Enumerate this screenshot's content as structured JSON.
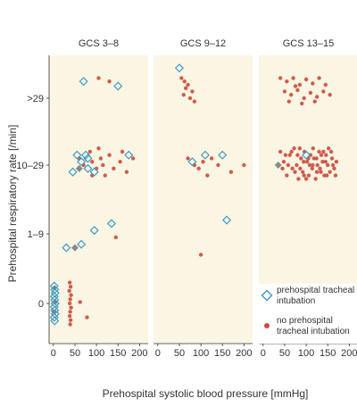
{
  "chart_data": {
    "type": "scatter",
    "xlabel": "Prehospital systolic blood pressure [mmHg]",
    "ylabel": "Prehospital respiratory rate [/min]",
    "xlim": [
      -10,
      220
    ],
    "x_ticks": [
      "0",
      "50",
      "100",
      "150",
      "200"
    ],
    "y_categories": [
      "0",
      "1–9",
      "10–29",
      ">29"
    ],
    "panels": [
      "GCS 3–8",
      "GCS 9–12",
      "GCS 13–15"
    ],
    "panel_background": "#fbf5e3",
    "grid": false,
    "legend_placement": "bottom-right",
    "series": [
      {
        "name": "prehospital tracheal intubation",
        "marker": "open-diamond",
        "color": "#3b9bc8",
        "points": [
          {
            "panel": 0,
            "x": 2,
            "y": 0.25
          },
          {
            "panel": 0,
            "x": 3,
            "y": 0.2
          },
          {
            "panel": 0,
            "x": 4,
            "y": 0.15
          },
          {
            "panel": 0,
            "x": 2,
            "y": 0.1
          },
          {
            "panel": 0,
            "x": 3,
            "y": 0.05
          },
          {
            "panel": 0,
            "x": 4,
            "y": 0.0
          },
          {
            "panel": 0,
            "x": 2,
            "y": -0.05
          },
          {
            "panel": 0,
            "x": 3,
            "y": -0.1
          },
          {
            "panel": 0,
            "x": 4,
            "y": -0.15
          },
          {
            "panel": 0,
            "x": 2,
            "y": -0.2
          },
          {
            "panel": 0,
            "x": 3,
            "y": -0.25
          },
          {
            "panel": 0,
            "x": 30,
            "y": 0.8
          },
          {
            "panel": 0,
            "x": 65,
            "y": 0.85
          },
          {
            "panel": 0,
            "x": 95,
            "y": 1.05
          },
          {
            "panel": 0,
            "x": 135,
            "y": 1.15
          },
          {
            "panel": 0,
            "x": 45,
            "y": 1.9
          },
          {
            "panel": 0,
            "x": 55,
            "y": 2.15
          },
          {
            "panel": 0,
            "x": 65,
            "y": 2.05
          },
          {
            "panel": 0,
            "x": 75,
            "y": 2.15
          },
          {
            "panel": 0,
            "x": 80,
            "y": 2.1
          },
          {
            "panel": 0,
            "x": 80,
            "y": 1.95
          },
          {
            "panel": 0,
            "x": 95,
            "y": 1.9
          },
          {
            "panel": 0,
            "x": 175,
            "y": 2.15
          },
          {
            "panel": 0,
            "x": 70,
            "y": 3.25
          },
          {
            "panel": 0,
            "x": 150,
            "y": 3.18
          },
          {
            "panel": 1,
            "x": 50,
            "y": 3.45
          },
          {
            "panel": 1,
            "x": 80,
            "y": 2.05
          },
          {
            "panel": 1,
            "x": 110,
            "y": 2.15
          },
          {
            "panel": 1,
            "x": 150,
            "y": 2.15
          },
          {
            "panel": 1,
            "x": 160,
            "y": 1.2
          },
          {
            "panel": 2,
            "x": 100,
            "y": 2.15
          }
        ]
      },
      {
        "name": "no prehospital tracheal intubation",
        "marker": "filled-circle",
        "color": "#cc4a3c",
        "points": [
          {
            "panel": 0,
            "x": 2,
            "y": 0.22
          },
          {
            "panel": 0,
            "x": 5,
            "y": 0.02
          },
          {
            "panel": 0,
            "x": 1,
            "y": -0.12
          },
          {
            "panel": 0,
            "x": 38,
            "y": 0.3
          },
          {
            "panel": 0,
            "x": 40,
            "y": 0.24
          },
          {
            "panel": 0,
            "x": 37,
            "y": 0.18
          },
          {
            "panel": 0,
            "x": 41,
            "y": 0.12
          },
          {
            "panel": 0,
            "x": 39,
            "y": 0.06
          },
          {
            "panel": 0,
            "x": 38,
            "y": 0.0
          },
          {
            "panel": 0,
            "x": 41,
            "y": -0.06
          },
          {
            "panel": 0,
            "x": 39,
            "y": -0.12
          },
          {
            "panel": 0,
            "x": 38,
            "y": -0.18
          },
          {
            "panel": 0,
            "x": 40,
            "y": -0.24
          },
          {
            "panel": 0,
            "x": 39,
            "y": -0.3
          },
          {
            "panel": 0,
            "x": 62,
            "y": 0.02
          },
          {
            "panel": 0,
            "x": 78,
            "y": -0.2
          },
          {
            "panel": 0,
            "x": 105,
            "y": 3.3
          },
          {
            "panel": 0,
            "x": 130,
            "y": 3.25
          },
          {
            "panel": 0,
            "x": 60,
            "y": 2.1
          },
          {
            "panel": 0,
            "x": 70,
            "y": 2.0
          },
          {
            "panel": 0,
            "x": 85,
            "y": 2.2
          },
          {
            "panel": 0,
            "x": 90,
            "y": 2.05
          },
          {
            "panel": 0,
            "x": 100,
            "y": 1.95
          },
          {
            "panel": 0,
            "x": 110,
            "y": 2.1
          },
          {
            "panel": 0,
            "x": 115,
            "y": 2.0
          },
          {
            "panel": 0,
            "x": 120,
            "y": 1.85
          },
          {
            "panel": 0,
            "x": 130,
            "y": 2.15
          },
          {
            "panel": 0,
            "x": 140,
            "y": 1.95
          },
          {
            "panel": 0,
            "x": 155,
            "y": 2.05
          },
          {
            "panel": 0,
            "x": 160,
            "y": 2.2
          },
          {
            "panel": 0,
            "x": 170,
            "y": 1.9
          },
          {
            "panel": 0,
            "x": 185,
            "y": 2.1
          },
          {
            "panel": 0,
            "x": 105,
            "y": 2.25
          },
          {
            "panel": 0,
            "x": 90,
            "y": 1.85
          },
          {
            "panel": 0,
            "x": 145,
            "y": 0.95
          },
          {
            "panel": 1,
            "x": 55,
            "y": 3.3
          },
          {
            "panel": 1,
            "x": 62,
            "y": 3.25
          },
          {
            "panel": 1,
            "x": 70,
            "y": 3.2
          },
          {
            "panel": 1,
            "x": 80,
            "y": 3.1
          },
          {
            "panel": 1,
            "x": 60,
            "y": 3.05
          },
          {
            "panel": 1,
            "x": 75,
            "y": 3.0
          },
          {
            "panel": 1,
            "x": 85,
            "y": 2.95
          },
          {
            "panel": 1,
            "x": 65,
            "y": 3.15
          },
          {
            "panel": 1,
            "x": 70,
            "y": 2.1
          },
          {
            "panel": 1,
            "x": 85,
            "y": 2.0
          },
          {
            "panel": 1,
            "x": 95,
            "y": 1.95
          },
          {
            "panel": 1,
            "x": 105,
            "y": 2.05
          },
          {
            "panel": 1,
            "x": 115,
            "y": 1.85
          },
          {
            "panel": 1,
            "x": 125,
            "y": 2.1
          },
          {
            "panel": 1,
            "x": 140,
            "y": 2.0
          },
          {
            "panel": 1,
            "x": 170,
            "y": 1.9
          },
          {
            "panel": 1,
            "x": 200,
            "y": 2.0
          },
          {
            "panel": 1,
            "x": 100,
            "y": 0.7
          },
          {
            "panel": 2,
            "x": 40,
            "y": 3.3
          },
          {
            "panel": 2,
            "x": 55,
            "y": 3.25
          },
          {
            "panel": 2,
            "x": 70,
            "y": 3.3
          },
          {
            "panel": 2,
            "x": 85,
            "y": 3.2
          },
          {
            "panel": 2,
            "x": 100,
            "y": 3.28
          },
          {
            "panel": 2,
            "x": 115,
            "y": 3.22
          },
          {
            "panel": 2,
            "x": 130,
            "y": 3.3
          },
          {
            "panel": 2,
            "x": 145,
            "y": 3.2
          },
          {
            "panel": 2,
            "x": 50,
            "y": 3.1
          },
          {
            "panel": 2,
            "x": 65,
            "y": 3.05
          },
          {
            "panel": 2,
            "x": 80,
            "y": 3.12
          },
          {
            "panel": 2,
            "x": 95,
            "y": 3.0
          },
          {
            "panel": 2,
            "x": 110,
            "y": 3.08
          },
          {
            "panel": 2,
            "x": 125,
            "y": 3.02
          },
          {
            "panel": 2,
            "x": 140,
            "y": 3.1
          },
          {
            "panel": 2,
            "x": 155,
            "y": 3.05
          },
          {
            "panel": 2,
            "x": 60,
            "y": 2.95
          },
          {
            "panel": 2,
            "x": 90,
            "y": 2.92
          },
          {
            "panel": 2,
            "x": 120,
            "y": 2.95
          },
          {
            "panel": 2,
            "x": 75,
            "y": 3.18
          },
          {
            "panel": 2,
            "x": 40,
            "y": 2.2
          },
          {
            "panel": 2,
            "x": 48,
            "y": 2.05
          },
          {
            "panel": 2,
            "x": 55,
            "y": 1.85
          },
          {
            "panel": 2,
            "x": 62,
            "y": 2.15
          },
          {
            "panel": 2,
            "x": 68,
            "y": 1.95
          },
          {
            "panel": 2,
            "x": 72,
            "y": 2.25
          },
          {
            "panel": 2,
            "x": 78,
            "y": 2.0
          },
          {
            "panel": 2,
            "x": 82,
            "y": 1.8
          },
          {
            "panel": 2,
            "x": 88,
            "y": 2.1
          },
          {
            "panel": 2,
            "x": 92,
            "y": 1.9
          },
          {
            "panel": 2,
            "x": 96,
            "y": 2.2
          },
          {
            "panel": 2,
            "x": 102,
            "y": 2.05
          },
          {
            "panel": 2,
            "x": 106,
            "y": 1.85
          },
          {
            "panel": 2,
            "x": 110,
            "y": 2.15
          },
          {
            "panel": 2,
            "x": 114,
            "y": 1.95
          },
          {
            "panel": 2,
            "x": 118,
            "y": 2.1
          },
          {
            "panel": 2,
            "x": 122,
            "y": 1.8
          },
          {
            "panel": 2,
            "x": 126,
            "y": 2.0
          },
          {
            "panel": 2,
            "x": 130,
            "y": 2.2
          },
          {
            "panel": 2,
            "x": 134,
            "y": 1.9
          },
          {
            "panel": 2,
            "x": 138,
            "y": 2.05
          },
          {
            "panel": 2,
            "x": 142,
            "y": 1.85
          },
          {
            "panel": 2,
            "x": 146,
            "y": 2.15
          },
          {
            "panel": 2,
            "x": 150,
            "y": 2.0
          },
          {
            "panel": 2,
            "x": 155,
            "y": 1.9
          },
          {
            "panel": 2,
            "x": 160,
            "y": 2.1
          },
          {
            "panel": 2,
            "x": 165,
            "y": 1.95
          },
          {
            "panel": 2,
            "x": 170,
            "y": 2.05
          },
          {
            "panel": 2,
            "x": 45,
            "y": 1.95
          },
          {
            "panel": 2,
            "x": 52,
            "y": 2.15
          },
          {
            "panel": 2,
            "x": 58,
            "y": 2.0
          },
          {
            "panel": 2,
            "x": 66,
            "y": 2.2
          },
          {
            "panel": 2,
            "x": 74,
            "y": 1.9
          },
          {
            "panel": 2,
            "x": 80,
            "y": 2.15
          },
          {
            "panel": 2,
            "x": 86,
            "y": 1.95
          },
          {
            "panel": 2,
            "x": 94,
            "y": 2.05
          },
          {
            "panel": 2,
            "x": 100,
            "y": 1.8
          },
          {
            "panel": 2,
            "x": 108,
            "y": 2.0
          },
          {
            "panel": 2,
            "x": 116,
            "y": 2.25
          },
          {
            "panel": 2,
            "x": 124,
            "y": 2.1
          },
          {
            "panel": 2,
            "x": 132,
            "y": 1.95
          },
          {
            "panel": 2,
            "x": 140,
            "y": 2.2
          },
          {
            "panel": 2,
            "x": 148,
            "y": 1.85
          },
          {
            "panel": 2,
            "x": 158,
            "y": 2.2
          },
          {
            "panel": 2,
            "x": 168,
            "y": 1.85
          },
          {
            "panel": 2,
            "x": 85,
            "y": 2.25
          },
          {
            "panel": 2,
            "x": 95,
            "y": 1.85
          },
          {
            "panel": 2,
            "x": 105,
            "y": 2.1
          },
          {
            "panel": 2,
            "x": 115,
            "y": 2.0
          },
          {
            "panel": 2,
            "x": 125,
            "y": 1.9
          },
          {
            "panel": 2,
            "x": 135,
            "y": 2.15
          },
          {
            "panel": 2,
            "x": 145,
            "y": 2.05
          },
          {
            "panel": 2,
            "x": 152,
            "y": 2.25
          },
          {
            "panel": 2,
            "x": 162,
            "y": 2.0
          }
        ]
      },
      {
        "name": "",
        "marker": "filled-diamond",
        "color": "#8a8a8a",
        "points": [
          {
            "panel": 0,
            "x": 50,
            "y": 0.8
          },
          {
            "panel": 0,
            "x": 60,
            "y": 1.95
          },
          {
            "panel": 2,
            "x": 35,
            "y": 2.0
          }
        ]
      }
    ]
  }
}
